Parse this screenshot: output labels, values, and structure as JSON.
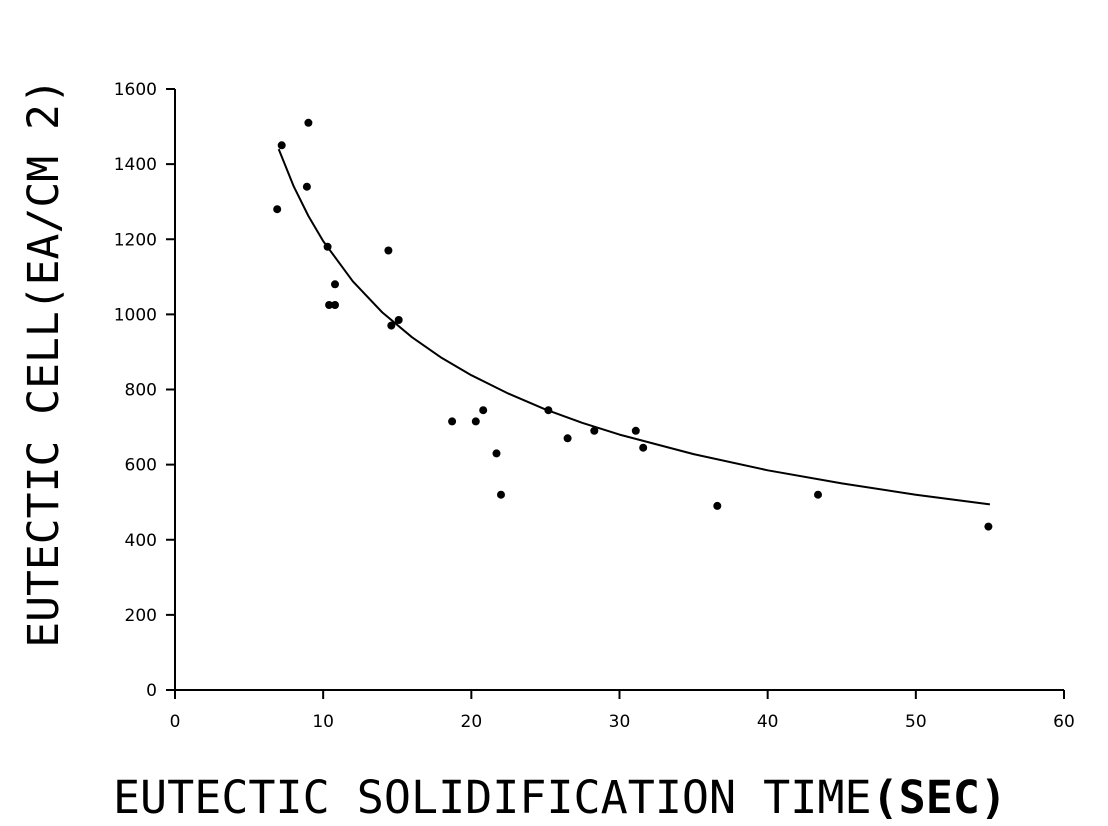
{
  "chart_data": {
    "type": "scatter",
    "title": "",
    "xlabel": "EUTECTIC SOLIDIFICATION TIME",
    "xlabel_unit": "(SEC)",
    "ylabel": "EUTECTIC CELL(EA/CM 2)",
    "xlim": [
      0,
      60
    ],
    "ylim": [
      0,
      1600
    ],
    "xticks": [
      0,
      10,
      20,
      30,
      40,
      50,
      60
    ],
    "yticks": [
      0,
      200,
      400,
      600,
      800,
      1000,
      1200,
      1400,
      1600
    ],
    "grid": false,
    "legend": "none",
    "colors": {
      "points": "#000000",
      "curve": "#000000",
      "axes": "#000000",
      "background": "#ffffff"
    },
    "points": [
      {
        "x": 6.9,
        "y": 1280
      },
      {
        "x": 7.2,
        "y": 1450
      },
      {
        "x": 9.0,
        "y": 1510
      },
      {
        "x": 8.9,
        "y": 1340
      },
      {
        "x": 10.3,
        "y": 1180
      },
      {
        "x": 10.4,
        "y": 1025
      },
      {
        "x": 10.8,
        "y": 1025
      },
      {
        "x": 10.8,
        "y": 1080
      },
      {
        "x": 14.4,
        "y": 1170
      },
      {
        "x": 14.6,
        "y": 970
      },
      {
        "x": 15.1,
        "y": 985
      },
      {
        "x": 18.7,
        "y": 715
      },
      {
        "x": 20.3,
        "y": 715
      },
      {
        "x": 20.8,
        "y": 745
      },
      {
        "x": 21.7,
        "y": 630
      },
      {
        "x": 22.0,
        "y": 520
      },
      {
        "x": 25.2,
        "y": 745
      },
      {
        "x": 26.5,
        "y": 670
      },
      {
        "x": 28.3,
        "y": 690
      },
      {
        "x": 31.1,
        "y": 690
      },
      {
        "x": 31.6,
        "y": 645
      },
      {
        "x": 36.6,
        "y": 490
      },
      {
        "x": 43.4,
        "y": 520
      },
      {
        "x": 54.9,
        "y": 435
      }
    ],
    "fit_curve": {
      "type": "power",
      "x": [
        7.0,
        8.0,
        9.0,
        10.0,
        12.0,
        14.0,
        16.0,
        18.0,
        20.0,
        22.5,
        25.0,
        27.5,
        30.0,
        35.0,
        40.0,
        45.0,
        50.0,
        55.0
      ],
      "y": [
        1440,
        1342,
        1262,
        1195,
        1088,
        1005,
        939,
        884,
        838,
        789,
        747,
        711,
        680,
        628,
        585,
        550,
        520,
        494
      ]
    }
  }
}
